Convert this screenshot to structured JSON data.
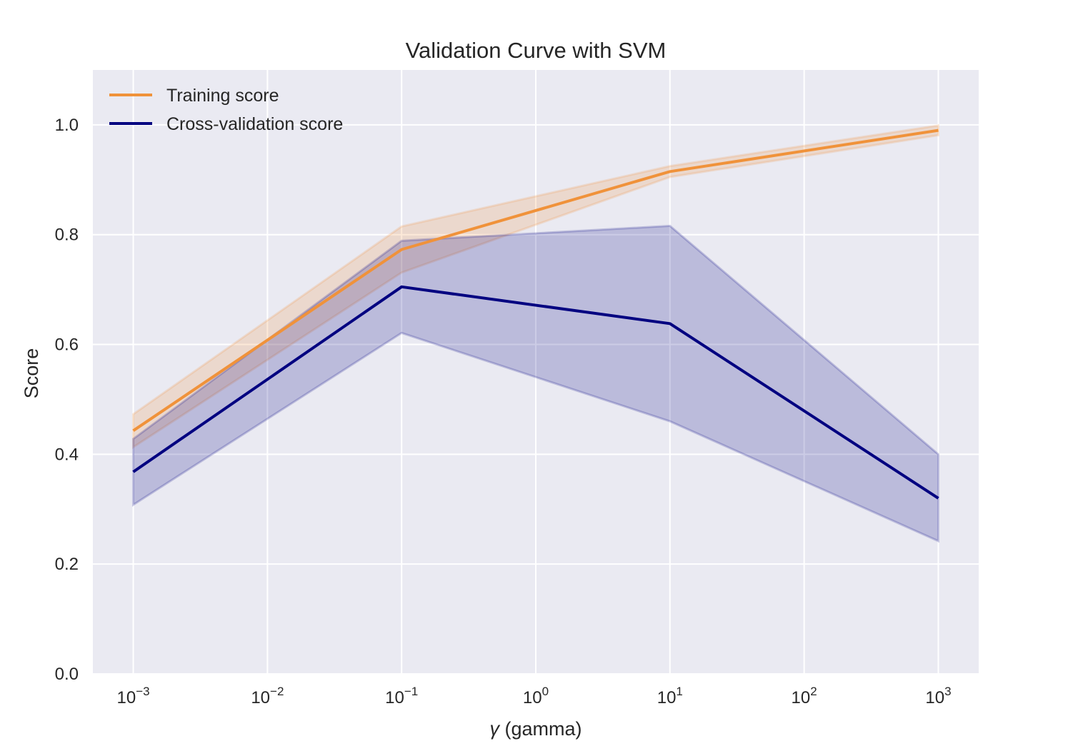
{
  "chart_data": {
    "type": "line",
    "title": "Validation Curve with SVM",
    "xlabel_symbol": "γ",
    "xlabel_text": " (gamma)",
    "ylabel": "Score",
    "xscale": "log",
    "xlim": [
      0.0005,
      2000
    ],
    "ylim": [
      0.0,
      1.1
    ],
    "x": [
      0.001,
      0.1,
      10,
      1000
    ],
    "x_ticks": [
      {
        "value": 0.001,
        "base": "10",
        "exp": "−3"
      },
      {
        "value": 0.01,
        "base": "10",
        "exp": "−2"
      },
      {
        "value": 0.1,
        "base": "10",
        "exp": "−1"
      },
      {
        "value": 1,
        "base": "10",
        "exp": "0"
      },
      {
        "value": 10,
        "base": "10",
        "exp": "1"
      },
      {
        "value": 100,
        "base": "10",
        "exp": "2"
      },
      {
        "value": 1000,
        "base": "10",
        "exp": "3"
      }
    ],
    "y_ticks": [
      {
        "value": 0.0,
        "label": "0.0"
      },
      {
        "value": 0.2,
        "label": "0.2"
      },
      {
        "value": 0.4,
        "label": "0.4"
      },
      {
        "value": 0.6,
        "label": "0.6"
      },
      {
        "value": 0.8,
        "label": "0.8"
      },
      {
        "value": 1.0,
        "label": "1.0"
      }
    ],
    "grid": true,
    "legend_position": "top-left",
    "background_color": "#eaeaf2",
    "series": [
      {
        "name": "Training score",
        "color": "#f0923a",
        "values": [
          0.443,
          0.773,
          0.915,
          0.99
        ],
        "band_upper": [
          0.473,
          0.815,
          0.925,
          0.999
        ],
        "band_lower": [
          0.413,
          0.731,
          0.905,
          0.981
        ]
      },
      {
        "name": "Cross-validation score",
        "color": "#000080",
        "values": [
          0.368,
          0.705,
          0.638,
          0.32
        ],
        "band_upper": [
          0.428,
          0.789,
          0.816,
          0.4
        ],
        "band_lower": [
          0.308,
          0.621,
          0.46,
          0.242
        ]
      }
    ]
  }
}
